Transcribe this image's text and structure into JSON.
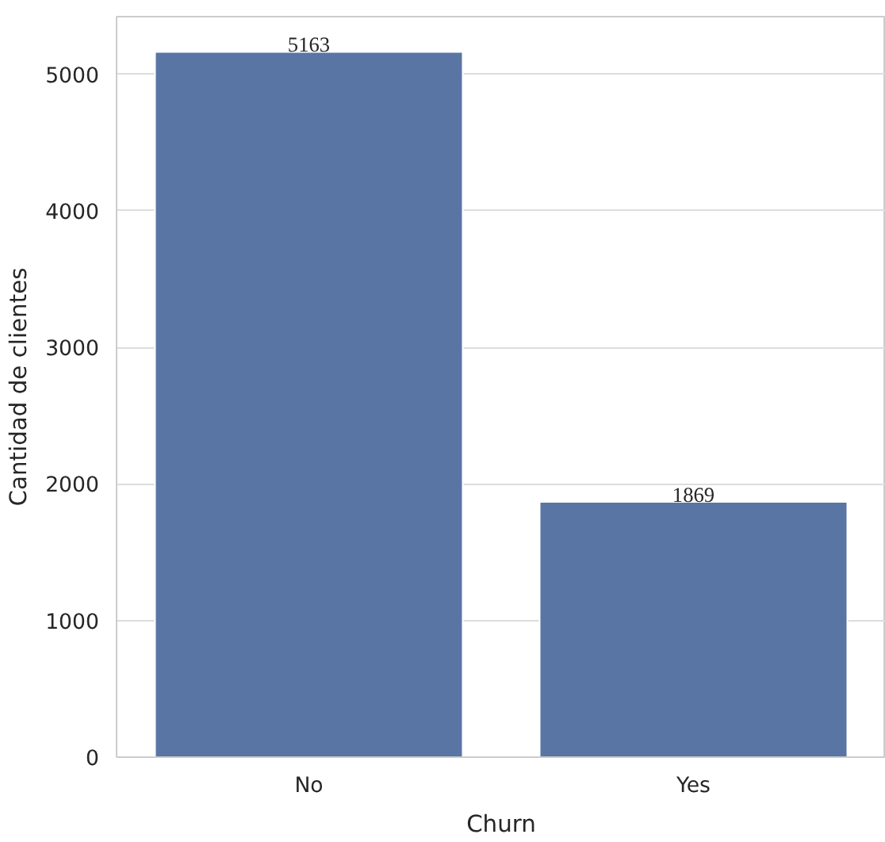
{
  "chart_data": {
    "type": "bar",
    "xlabel": "Churn",
    "ylabel": "Cantidad de clientes",
    "categories": [
      "No",
      "Yes"
    ],
    "series": [
      {
        "color": "#5975a4",
        "values": [
          5163,
          1869
        ]
      }
    ],
    "ylim": [
      0,
      5421
    ],
    "yticks": [
      0,
      1000,
      2000,
      3000,
      4000,
      5000
    ],
    "grid": "y",
    "data_labels": true
  }
}
